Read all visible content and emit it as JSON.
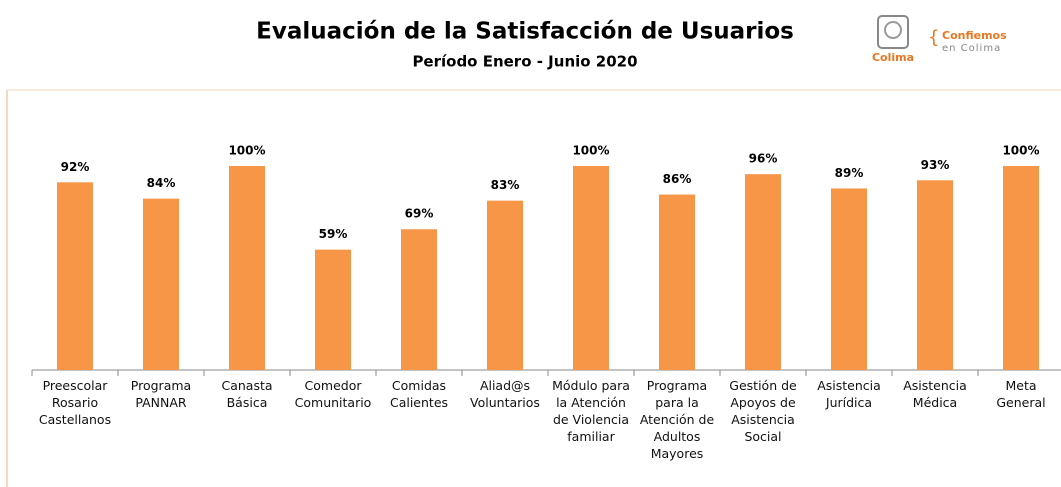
{
  "chart_data": {
    "type": "bar",
    "title": "Evaluación de la Satisfacción de Usuarios",
    "subtitle": "Período Enero - Junio 2020",
    "logo": {
      "city": "Colima",
      "slogan_top": "Confiemos",
      "slogan_bottom": "en Colima"
    },
    "categories": [
      "Preescolar Rosario Castellanos",
      "Programa PANNAR",
      "Canasta Básica",
      "Comedor Comunitario",
      "Comidas Calientes",
      "Aliad@s Voluntarios",
      "Módulo para la Atención de Violencia familiar",
      "Programa para la Atención de Adultos Mayores",
      "Gestión de Apoyos de Asistencia Social",
      "Asistencia Jurídica",
      "Asistencia Médica",
      "Meta General"
    ],
    "values": [
      92,
      84,
      100,
      59,
      69,
      83,
      100,
      86,
      96,
      89,
      93,
      100
    ],
    "value_labels": [
      "92%",
      "84%",
      "100%",
      "59%",
      "69%",
      "83%",
      "100%",
      "86%",
      "96%",
      "89%",
      "93%",
      "100%"
    ],
    "color": "#f79646",
    "ylim": [
      0,
      100
    ]
  }
}
